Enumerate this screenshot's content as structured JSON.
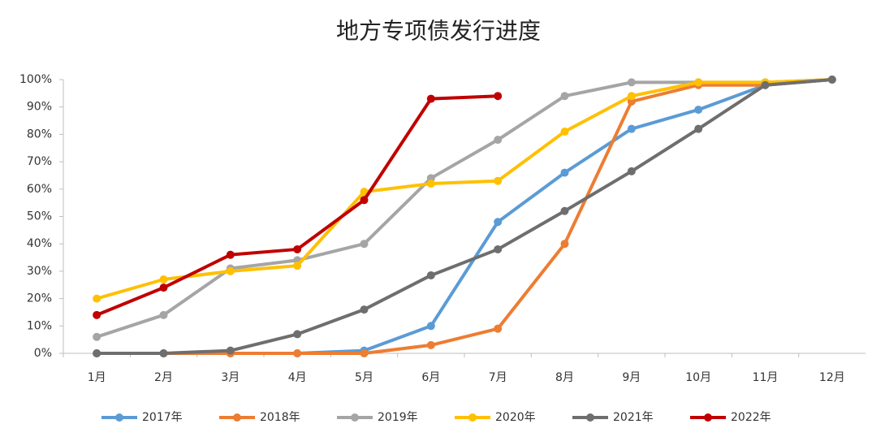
{
  "chart_data": {
    "type": "line",
    "title": "地方专项债发行进度",
    "categories": [
      "1月",
      "2月",
      "3月",
      "4月",
      "5月",
      "6月",
      "7月",
      "8月",
      "9月",
      "10月",
      "11月",
      "12月"
    ],
    "ylim": [
      0,
      100
    ],
    "yticks": [
      {
        "value": 0,
        "label": "0%"
      },
      {
        "value": 10,
        "label": "10%"
      },
      {
        "value": 20,
        "label": "20%"
      },
      {
        "value": 30,
        "label": "30%"
      },
      {
        "value": 40,
        "label": "40%"
      },
      {
        "value": 50,
        "label": "50%"
      },
      {
        "value": 60,
        "label": "60%"
      },
      {
        "value": 70,
        "label": "70%"
      },
      {
        "value": 80,
        "label": "80%"
      },
      {
        "value": 90,
        "label": "90%"
      },
      {
        "value": 100,
        "label": "100%"
      }
    ],
    "grid": false,
    "legend": "bottom",
    "series": [
      {
        "name": "2017年",
        "color": "#5b9bd5",
        "values": [
          0,
          0,
          0,
          0,
          1,
          10,
          48,
          66,
          82,
          89,
          98,
          100
        ]
      },
      {
        "name": "2018年",
        "color": "#ed7d31",
        "values": [
          0,
          0,
          0,
          0,
          0,
          3,
          9,
          40,
          92,
          98,
          98,
          100
        ]
      },
      {
        "name": "2019年",
        "color": "#a5a5a5",
        "values": [
          6,
          14,
          31,
          34,
          40,
          64,
          78,
          94,
          99,
          99,
          99,
          100
        ]
      },
      {
        "name": "2020年",
        "color": "#ffc000",
        "values": [
          20,
          27,
          30,
          32,
          59,
          62,
          63,
          81,
          94,
          99,
          99,
          100
        ]
      },
      {
        "name": "2021年",
        "color": "#6e6e6e",
        "values": [
          0,
          0,
          1,
          7,
          16,
          28.5,
          38,
          52,
          66.5,
          82,
          98,
          100
        ]
      },
      {
        "name": "2022年",
        "color": "#c00000",
        "values": [
          14,
          24,
          36,
          38,
          56,
          93,
          94,
          null,
          null,
          null,
          null,
          null
        ]
      }
    ]
  }
}
